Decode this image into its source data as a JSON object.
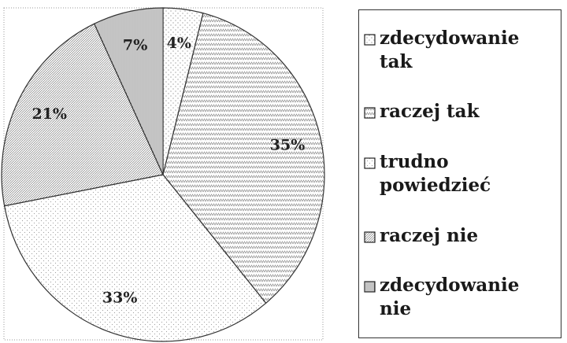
{
  "chart_data": {
    "type": "pie",
    "categories": [
      "zdecydowanie tak",
      "raczej tak",
      "trudno powiedzieć",
      "raczej nie",
      "zdecydowanie nie"
    ],
    "values": [
      4,
      35,
      33,
      21,
      7
    ],
    "value_labels": [
      "4%",
      "35%",
      "33%",
      "21%",
      "7%"
    ],
    "colors": [
      "#9a9a9a",
      "#8a8a8a",
      "#a0a0a0",
      "#7a7a7a",
      "#6a6a6a"
    ]
  }
}
